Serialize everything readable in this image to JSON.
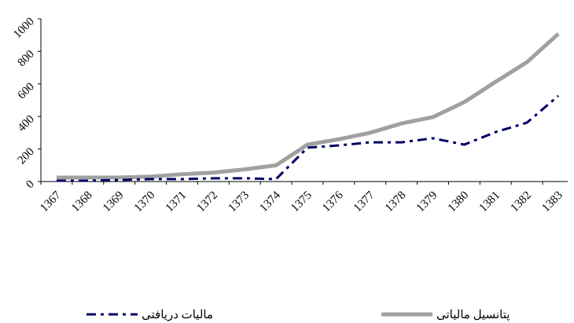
{
  "chart_data": {
    "type": "line",
    "categories": [
      "1367",
      "1368",
      "1369",
      "1370",
      "1371",
      "1372",
      "1373",
      "1374",
      "1375",
      "1376",
      "1377",
      "1378",
      "1379",
      "1380",
      "1381",
      "1382",
      "1383"
    ],
    "series": [
      {
        "name": "پتانسیل مالیاتی",
        "color": "#a0a0a0",
        "values": [
          24,
          25,
          25,
          30,
          45,
          55,
          75,
          100,
          227,
          260,
          300,
          357,
          396,
          488,
          613,
          734,
          908
        ]
      },
      {
        "name": "مالیات دریافتی",
        "color": "#000066",
        "values": [
          5,
          5,
          10,
          15,
          15,
          20,
          20,
          15,
          208,
          222,
          241,
          241,
          266,
          227,
          304,
          362,
          527
        ]
      }
    ],
    "ylim": [
      0,
      1000
    ],
    "yticks": [
      0,
      200,
      400,
      600,
      800,
      1000
    ],
    "grid": false
  }
}
